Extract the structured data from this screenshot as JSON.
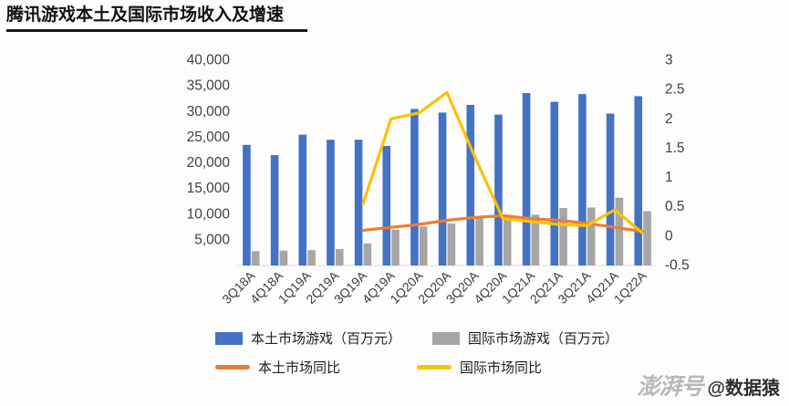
{
  "page": {
    "title": "腾讯游戏本土及国际市场收入及增速",
    "watermark_logo": "澎湃号",
    "watermark_handle": "@数据猿"
  },
  "colors": {
    "domestic_bar": "#4472c4",
    "intl_bar": "#a6a6a6",
    "domestic_line": "#ed7d31",
    "intl_line": "#ffc000",
    "axis_text": "#3f3f3f",
    "title_underline": "#161616"
  },
  "chart_data": {
    "type": "bar",
    "subtype": "combo-bar-line-dual-axis",
    "title": "腾讯游戏本土及国际市场收入及增速",
    "categories": [
      "3Q18A",
      "4Q18A",
      "1Q19A",
      "2Q19A",
      "3Q19A",
      "4Q19A",
      "1Q20A",
      "2Q20A",
      "3Q20A",
      "4Q20A",
      "1Q21A",
      "2Q21A",
      "3Q21A",
      "4Q21A",
      "1Q22A"
    ],
    "series": [
      {
        "name": "本土市场游戏（百万元）",
        "type": "bar",
        "axis": "left",
        "color": "#4472c4",
        "values": [
          23500,
          21500,
          25500,
          24500,
          24500,
          23300,
          30500,
          29800,
          31300,
          29400,
          33600,
          31900,
          33400,
          29600,
          33000
        ]
      },
      {
        "name": "国际市场游戏（百万元）",
        "type": "bar",
        "axis": "left",
        "color": "#a6a6a6",
        "values": [
          2800,
          2900,
          3000,
          3200,
          4300,
          7000,
          7600,
          8200,
          9200,
          9800,
          9900,
          11200,
          11300,
          13200,
          10600
        ]
      },
      {
        "name": "本土市场同比",
        "type": "line",
        "axis": "right",
        "color": "#ed7d31",
        "values": [
          null,
          null,
          null,
          null,
          0.1,
          0.15,
          0.2,
          0.27,
          0.32,
          0.35,
          0.3,
          0.27,
          0.22,
          0.15,
          0.08
        ]
      },
      {
        "name": "国际市场同比",
        "type": "line",
        "axis": "right",
        "color": "#ffc000",
        "values": [
          null,
          null,
          null,
          null,
          0.55,
          2.0,
          2.1,
          2.45,
          1.35,
          0.3,
          0.25,
          0.2,
          0.18,
          0.45,
          0.05
        ]
      }
    ],
    "left_axis": {
      "min": 0,
      "max": 40000,
      "ticks": [
        40000,
        35000,
        30000,
        25000,
        20000,
        15000,
        10000,
        5000
      ]
    },
    "right_axis": {
      "min": -0.5,
      "max": 3,
      "ticks": [
        3,
        2.5,
        2,
        1.5,
        1,
        0.5,
        0,
        -0.5
      ]
    },
    "grid": false,
    "legend_position": "bottom",
    "x_label_rotation": -45
  }
}
